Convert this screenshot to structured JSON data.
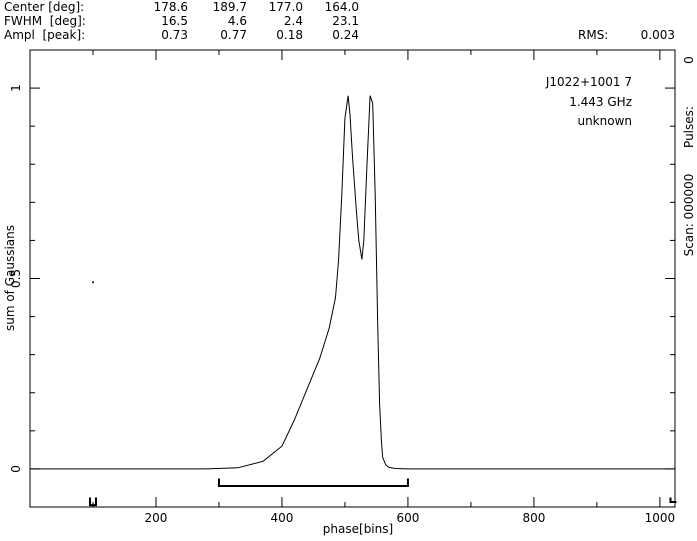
{
  "header": {
    "rows": [
      {
        "label": "Center [deg]:",
        "values": [
          "178.6",
          "189.7",
          "177.0",
          "164.0"
        ]
      },
      {
        "label": "FWHM  [deg]:",
        "values": [
          "16.5",
          "4.6",
          "2.4",
          "23.1"
        ]
      },
      {
        "label": "Ampl  [peak]:",
        "values": [
          "0.73",
          "0.77",
          "0.18",
          "0.24"
        ]
      }
    ],
    "rms_label": "RMS:",
    "rms_value": "0.003"
  },
  "annotations": {
    "source": "J1022+1001 7",
    "frequency": "1.443 GHz",
    "telescope": "unknown"
  },
  "right_axis": {
    "top_tick": "0",
    "pulses_label": "Pulses:",
    "scan_label": "Scan: 000000"
  },
  "chart_data": {
    "type": "line",
    "title": "",
    "xlabel": "phase[bins]",
    "ylabel": "sum of Gaussians",
    "xlim": [
      0,
      1024
    ],
    "ylim": [
      -0.1,
      1.1
    ],
    "xticks": [
      200,
      400,
      600,
      800,
      1000
    ],
    "yticks": [
      0,
      0.5,
      1
    ],
    "xtick_labels": [
      "200",
      "400",
      "600",
      "800",
      "1000"
    ],
    "ytick_labels": [
      "0",
      "0.5",
      "1"
    ],
    "grid": false,
    "series": [
      {
        "x": [
          0,
          280,
          330,
          370,
          400,
          420,
          440,
          460,
          475,
          485,
          490,
          495,
          500,
          505,
          508,
          512,
          518,
          522,
          527,
          530,
          535,
          540,
          544,
          548,
          552,
          555,
          558,
          560,
          565,
          570,
          580,
          600,
          1024
        ],
        "y": [
          0,
          0,
          0.003,
          0.02,
          0.06,
          0.13,
          0.21,
          0.29,
          0.37,
          0.45,
          0.55,
          0.72,
          0.92,
          0.98,
          0.93,
          0.82,
          0.68,
          0.6,
          0.55,
          0.6,
          0.8,
          0.98,
          0.96,
          0.72,
          0.38,
          0.17,
          0.07,
          0.03,
          0.01,
          0.004,
          0.001,
          0,
          0
        ]
      }
    ],
    "on_pulse_window": [
      300,
      600
    ],
    "left_marker_x": 100,
    "right_marker_x": 1020,
    "stray_point": {
      "x": 100,
      "y": 0.49
    }
  }
}
